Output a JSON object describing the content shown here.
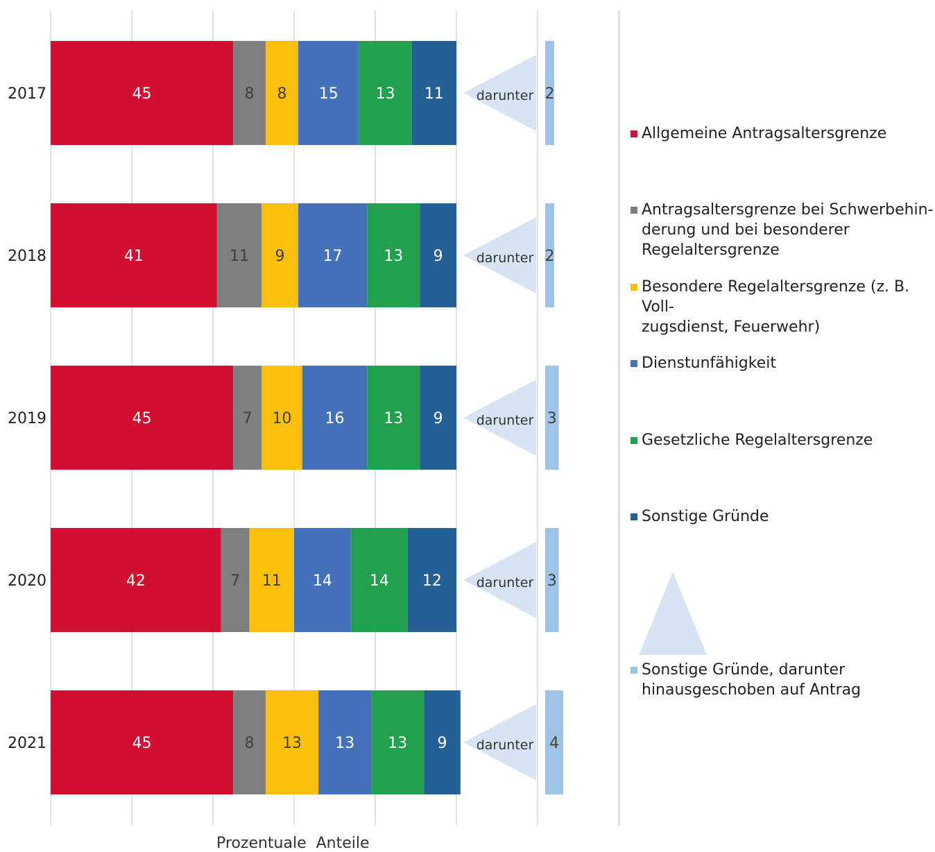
{
  "chart_data": {
    "type": "bar",
    "orientation": "horizontal",
    "stacked": true,
    "xlabel": "Prozentuale  Anteile",
    "categories": [
      "2017",
      "2018",
      "2019",
      "2020",
      "2021"
    ],
    "series": [
      {
        "name": "Allgemeine Antragsaltersgrenze",
        "color": "#d20f31",
        "values": [
          45,
          41,
          45,
          42,
          45
        ]
      },
      {
        "name": "Antragsaltersgrenze bei Schwerbehin-\nderung und bei besonderer\nRegelaltersgrenze",
        "color": "#7f7f7f",
        "values": [
          8,
          11,
          7,
          7,
          8
        ]
      },
      {
        "name": "Besondere Regelaltersgrenze (z. B. Voll-\nzugsdienst, Feuerwehr)",
        "color": "#fbbf0c",
        "values": [
          8,
          9,
          10,
          11,
          13
        ]
      },
      {
        "name": "Dienstunfähigkeit",
        "color": "#4472b8",
        "values": [
          15,
          17,
          16,
          14,
          13
        ]
      },
      {
        "name": "Gesetzliche Regelaltersgrenze",
        "color": "#21a04d",
        "values": [
          13,
          13,
          13,
          14,
          13
        ]
      },
      {
        "name": "Sonstige Gründe",
        "color": "#245f95",
        "values": [
          11,
          9,
          9,
          12,
          9
        ]
      }
    ],
    "sub_series": {
      "name": "Sonstige Gründe, darunter\nhinausgeschoben auf Antrag",
      "color": "#9dc3e6",
      "values": [
        2,
        2,
        3,
        3,
        4
      ],
      "annotation": "darunter"
    },
    "triangle_color": "#d6e4f4",
    "grid": true,
    "legend_position": "right"
  }
}
